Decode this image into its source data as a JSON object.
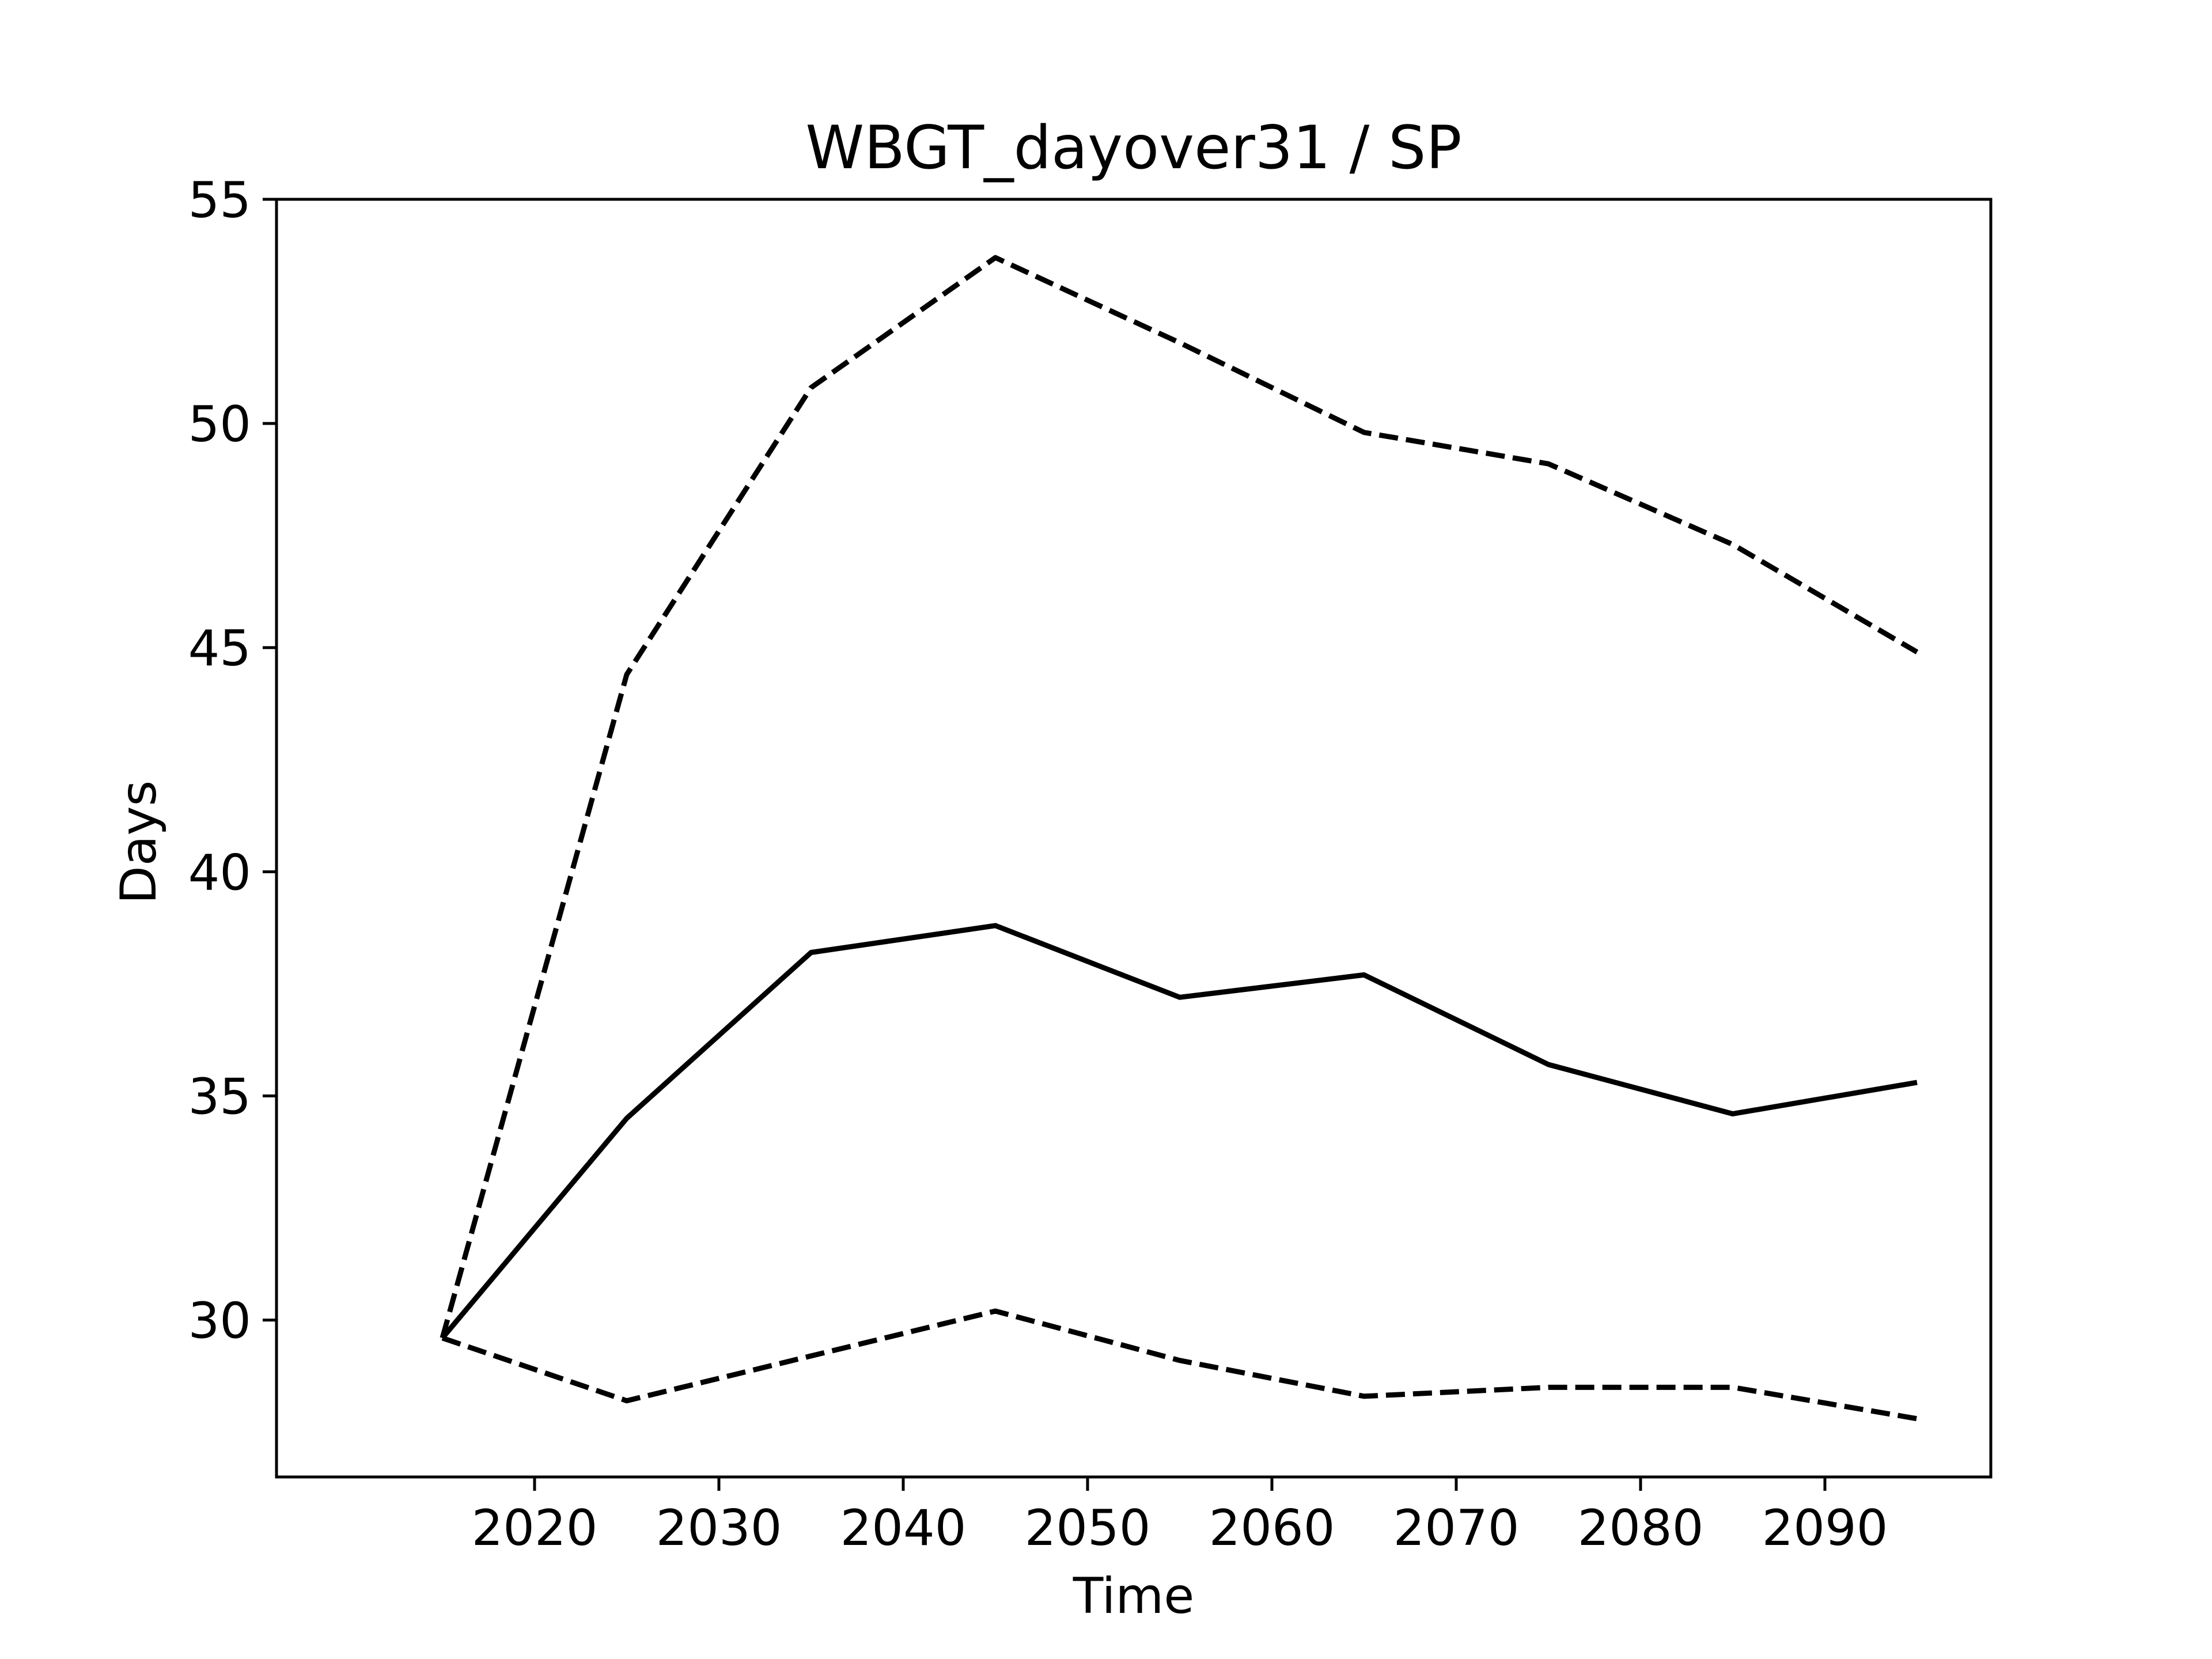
{
  "chart_data": {
    "type": "line",
    "title": "WBGT_dayover31 / SP",
    "xlabel": "Time",
    "ylabel": "Days",
    "x": [
      2015,
      2025,
      2035,
      2045,
      2055,
      2065,
      2075,
      2085,
      2095
    ],
    "xticks": [
      2020,
      2030,
      2040,
      2050,
      2060,
      2070,
      2080,
      2090
    ],
    "yticks": [
      30,
      35,
      40,
      45,
      50,
      55
    ],
    "xlim": [
      2006,
      2099
    ],
    "ylim": [
      26.5,
      55
    ],
    "grid": false,
    "legend": "none",
    "series": [
      {
        "line_style": "dashed",
        "color": "#000000",
        "values": [
          29.6,
          44.4,
          50.8,
          53.7,
          51.8,
          49.8,
          49.1,
          47.3,
          44.9
        ]
      },
      {
        "line_style": "solid",
        "color": "#000000",
        "values": [
          29.6,
          34.5,
          38.2,
          38.8,
          37.2,
          37.7,
          35.7,
          34.6,
          35.3
        ]
      },
      {
        "line_style": "dashed",
        "color": "#000000",
        "values": [
          29.6,
          28.2,
          29.2,
          30.2,
          29.1,
          28.3,
          28.5,
          28.5,
          27.8
        ]
      }
    ]
  }
}
